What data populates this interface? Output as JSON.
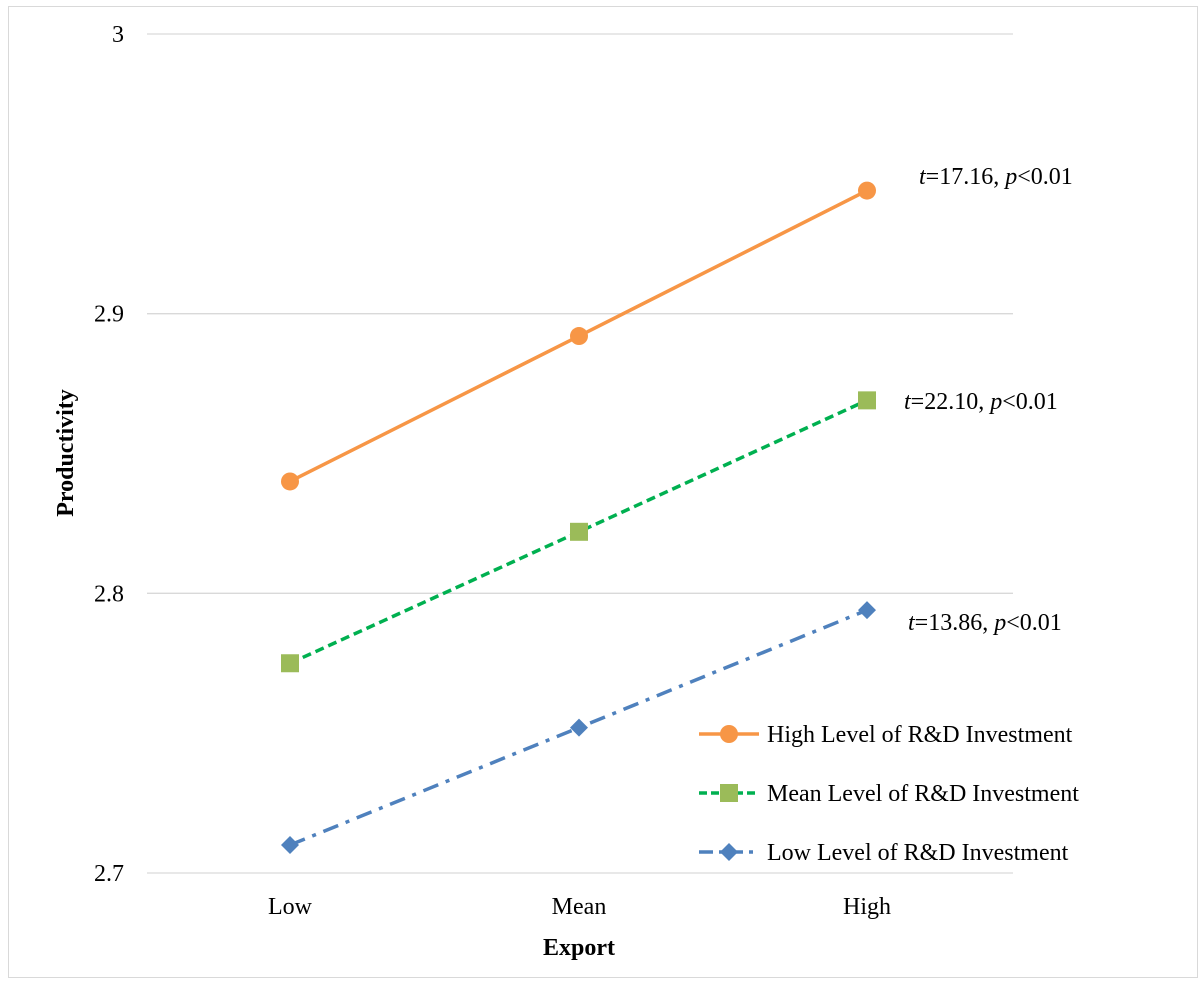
{
  "chart_data": {
    "type": "line",
    "categories": [
      "Low",
      "Mean",
      "High"
    ],
    "xlabel": "Export",
    "ylabel": "Productivity",
    "ylim": [
      2.7,
      3.0
    ],
    "yticks": [
      2.7,
      2.8,
      2.9,
      3.0
    ],
    "ytick_labels": [
      "2.7",
      "2.8",
      "2.9",
      "3"
    ],
    "grid": "horizontal",
    "legend_position": "bottom-right",
    "series": [
      {
        "name": "High Level of R&D Investment",
        "values": [
          2.84,
          2.892,
          2.944
        ],
        "color": "#f79646",
        "dash": "solid",
        "marker": "circle",
        "annotation": {
          "stat": "t",
          "eq": "=17.16, ",
          "pstat": "p",
          "prest": "<0.01"
        }
      },
      {
        "name": "Mean Level  of R&D Investment",
        "values": [
          2.775,
          2.822,
          2.869
        ],
        "color": "#00b050",
        "marker_color": "#9bbb59",
        "dash": "dashed",
        "marker": "square",
        "annotation": {
          "stat": "t",
          "eq": "=22.10, ",
          "pstat": "p",
          "prest": "<0.01"
        }
      },
      {
        "name": "Low Level of  R&D Investment",
        "values": [
          2.71,
          2.752,
          2.794
        ],
        "color": "#4f81bd",
        "dash": "dash-dot",
        "marker": "diamond",
        "annotation": {
          "stat": "t",
          "eq": "=13.86, ",
          "pstat": "p",
          "prest": "<0.01"
        }
      }
    ]
  }
}
